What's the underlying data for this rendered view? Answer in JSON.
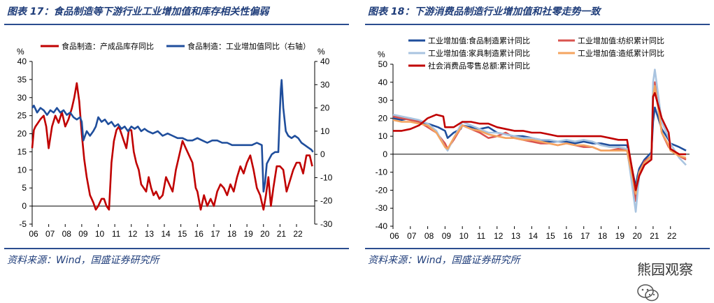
{
  "left": {
    "title": "图表 17：食品制造等下游行业工业增加值和库存相关性偏弱",
    "source": "资料来源：Wind，国盛证券研究所",
    "unit_left": "%",
    "unit_right": "%",
    "legend": [
      "食品制造：产成品库存同比",
      "食品制造：工业增加值同比（右轴）"
    ]
  },
  "right": {
    "title": "图表 18：下游消费品制造行业增加值和社零走势一致",
    "source": "资料来源：Wind，国盛证券研究所",
    "unit_left": "%",
    "legend": [
      "工业增加值:食品制造累计同比",
      "工业增加值:纺织累计同比",
      "工业增加值:家具制造累计同比",
      "工业增加值:造纸累计同比",
      "社会消费品零售总额:累计同比"
    ]
  },
  "watermark": "熊园观察",
  "chart_data": [
    {
      "type": "line",
      "title": "",
      "x_ticks": [
        "06",
        "07",
        "08",
        "09",
        "10",
        "11",
        "12",
        "13",
        "14",
        "15",
        "16",
        "17",
        "18",
        "19",
        "20",
        "21",
        "22"
      ],
      "x_range": [
        2006.0,
        2023.1
      ],
      "y_left": {
        "range": [
          -5,
          40
        ],
        "ticks": [
          -5,
          0,
          5,
          10,
          15,
          20,
          25,
          30,
          35,
          40
        ]
      },
      "y_right": {
        "range": [
          -30,
          40
        ],
        "ticks": [
          -30,
          -20,
          -10,
          0,
          10,
          20,
          30,
          40
        ]
      },
      "colors": {
        "inventory": "#c00000",
        "value_added": "#1f4e9c"
      },
      "series": [
        {
          "name": "食品制造：产成品库存同比",
          "axis": "left",
          "x": [
            2006.0,
            2006.1,
            2006.2,
            2006.35,
            2006.5,
            2006.7,
            2006.85,
            2007.0,
            2007.2,
            2007.4,
            2007.6,
            2007.8,
            2008.0,
            2008.2,
            2008.4,
            2008.55,
            2008.7,
            2008.85,
            2009.0,
            2009.15,
            2009.3,
            2009.5,
            2009.7,
            2009.85,
            2010.0,
            2010.2,
            2010.35,
            2010.5,
            2010.65,
            2010.8,
            2010.95,
            2011.1,
            2011.25,
            2011.4,
            2011.55,
            2011.7,
            2011.85,
            2012.0,
            2012.15,
            2012.3,
            2012.45,
            2012.6,
            2012.75,
            2012.9,
            2013.05,
            2013.2,
            2013.35,
            2013.5,
            2013.7,
            2013.9,
            2014.1,
            2014.3,
            2014.5,
            2014.7,
            2014.9,
            2015.1,
            2015.3,
            2015.5,
            2015.7,
            2015.9,
            2016.0,
            2016.2,
            2016.4,
            2016.6,
            2016.8,
            2017.0,
            2017.2,
            2017.4,
            2017.6,
            2017.8,
            2018.0,
            2018.2,
            2018.4,
            2018.6,
            2018.8,
            2019.0,
            2019.2,
            2019.4,
            2019.6,
            2019.8,
            2020.0,
            2020.15,
            2020.3,
            2020.45,
            2020.6,
            2020.8,
            2021.0,
            2021.2,
            2021.4,
            2021.6,
            2021.8,
            2022.0,
            2022.2,
            2022.4,
            2022.6,
            2022.8,
            2022.95
          ],
          "values": [
            16,
            21,
            22,
            23,
            24,
            25,
            22,
            16,
            22,
            25,
            23,
            26,
            22,
            24,
            27,
            30,
            34,
            29,
            20,
            13,
            8,
            3,
            1,
            -1,
            0,
            2,
            2,
            0,
            -1,
            12,
            18,
            21,
            22,
            20,
            18,
            16,
            21,
            21,
            15,
            12,
            10,
            6,
            5,
            4,
            8,
            5,
            3,
            4,
            2,
            3,
            8,
            6,
            4,
            10,
            14,
            18,
            16,
            14,
            12,
            5,
            4,
            -1,
            3,
            0,
            2,
            0,
            4,
            6,
            5,
            3,
            6,
            4,
            8,
            11,
            9,
            12,
            14,
            10,
            5,
            3,
            -1,
            3,
            8,
            0,
            5,
            11,
            11,
            10,
            4,
            7,
            10,
            12,
            12,
            9,
            14,
            14,
            11
          ]
        },
        {
          "name": "食品制造：工业增加值同比（右轴）",
          "axis": "right",
          "x": [
            2006.0,
            2006.1,
            2006.3,
            2006.5,
            2006.7,
            2006.9,
            2007.1,
            2007.3,
            2007.5,
            2007.7,
            2007.9,
            2008.1,
            2008.3,
            2008.5,
            2008.7,
            2008.9,
            2009.0,
            2009.1,
            2009.3,
            2009.5,
            2009.7,
            2009.85,
            2010.0,
            2010.2,
            2010.4,
            2010.6,
            2010.8,
            2011.0,
            2011.2,
            2011.4,
            2011.6,
            2011.8,
            2012.0,
            2012.2,
            2012.4,
            2012.6,
            2012.8,
            2013.0,
            2013.3,
            2013.6,
            2013.9,
            2014.2,
            2014.5,
            2014.8,
            2015.1,
            2015.4,
            2015.7,
            2016.0,
            2016.3,
            2016.6,
            2016.9,
            2017.2,
            2017.5,
            2017.8,
            2018.1,
            2018.4,
            2018.7,
            2019.0,
            2019.3,
            2019.6,
            2019.9,
            2020.0,
            2020.1,
            2020.2,
            2020.35,
            2020.5,
            2020.7,
            2020.9,
            2021.0,
            2021.05,
            2021.1,
            2021.2,
            2021.35,
            2021.5,
            2021.7,
            2021.9,
            2022.1,
            2022.3,
            2022.5,
            2022.7,
            2022.9,
            2023.0
          ],
          "values": [
            20,
            21,
            18,
            20,
            19,
            17,
            19,
            18,
            20,
            18,
            19,
            17,
            18,
            16,
            15,
            16,
            14,
            6,
            10,
            8,
            10,
            12,
            16,
            14,
            15,
            13,
            14,
            12,
            13,
            11,
            12,
            10,
            12,
            11,
            12,
            10,
            11,
            10,
            9,
            10,
            8,
            9,
            8,
            7,
            7,
            6,
            6,
            7,
            6,
            5,
            6,
            6,
            5,
            5,
            4,
            4,
            4,
            4,
            4,
            5,
            4,
            -16,
            -12,
            -4,
            -2,
            0,
            1,
            1,
            20,
            28,
            32,
            20,
            10,
            8,
            7,
            8,
            7,
            5,
            4,
            3,
            2,
            1
          ]
        }
      ]
    },
    {
      "type": "line",
      "title": "",
      "x_ticks": [
        "06",
        "07",
        "08",
        "09",
        "10",
        "11",
        "12",
        "13",
        "14",
        "15",
        "16",
        "17",
        "18",
        "19",
        "20",
        "21",
        "22"
      ],
      "x_range": [
        2006.0,
        2023.1
      ],
      "y_left": {
        "range": [
          -40,
          50
        ],
        "ticks": [
          -40,
          -30,
          -20,
          -10,
          0,
          10,
          20,
          30,
          40,
          50
        ]
      },
      "colors": {
        "food": "#1f4e9c",
        "textile": "#d9534f",
        "furniture": "#a9c4e0",
        "paper": "#f4a460",
        "retail": "#c00000"
      },
      "series": [
        {
          "name": "工业增加值:食品制造累计同比",
          "color_key": "food",
          "x": [
            2006.0,
            2006.5,
            2007.0,
            2007.5,
            2008.0,
            2008.3,
            2008.6,
            2009.0,
            2009.15,
            2009.5,
            2009.9,
            2010.0,
            2010.5,
            2011.0,
            2011.5,
            2012.0,
            2012.5,
            2013.0,
            2013.5,
            2014.0,
            2014.5,
            2015.0,
            2015.5,
            2016.0,
            2016.5,
            2017.0,
            2017.5,
            2018.0,
            2018.5,
            2019.0,
            2019.5,
            2020.0,
            2020.1,
            2020.2,
            2020.5,
            2020.9,
            2021.0,
            2021.1,
            2021.5,
            2021.9,
            2022.0,
            2022.5,
            2022.9
          ],
          "values": [
            20,
            19,
            20,
            18,
            17,
            16,
            15,
            13,
            9,
            12,
            14,
            16,
            15,
            14,
            15,
            12,
            11,
            10,
            10,
            9,
            8,
            7,
            7,
            7,
            6,
            7,
            6,
            6,
            5,
            5,
            5,
            -18,
            -12,
            -8,
            -3,
            1,
            18,
            26,
            14,
            8,
            6,
            4,
            2
          ]
        },
        {
          "name": "工业增加值:纺织累计同比",
          "color_key": "textile",
          "x": [
            2006.0,
            2006.5,
            2007.0,
            2007.5,
            2008.0,
            2008.5,
            2009.0,
            2009.15,
            2009.5,
            2010.0,
            2010.5,
            2011.0,
            2011.5,
            2012.0,
            2012.5,
            2013.0,
            2013.5,
            2014.0,
            2014.5,
            2015.0,
            2015.5,
            2016.0,
            2016.5,
            2017.0,
            2017.5,
            2018.0,
            2018.5,
            2019.0,
            2019.5,
            2020.0,
            2020.1,
            2020.2,
            2020.5,
            2020.9,
            2021.0,
            2021.1,
            2021.5,
            2021.9,
            2022.0,
            2022.5,
            2022.9
          ],
          "values": [
            21,
            20,
            19,
            18,
            15,
            12,
            6,
            3,
            8,
            16,
            14,
            12,
            9,
            10,
            12,
            9,
            8,
            7,
            6,
            6,
            5,
            6,
            5,
            4,
            4,
            2,
            2,
            3,
            2,
            -26,
            -18,
            -10,
            -4,
            -1,
            36,
            40,
            12,
            4,
            3,
            -1,
            -3
          ]
        },
        {
          "name": "工业增加值:家具制造累计同比",
          "color_key": "furniture",
          "x": [
            2006.0,
            2006.5,
            2007.0,
            2007.5,
            2008.0,
            2008.5,
            2009.0,
            2009.15,
            2009.5,
            2010.0,
            2010.5,
            2011.0,
            2011.5,
            2012.0,
            2012.5,
            2013.0,
            2013.5,
            2014.0,
            2014.5,
            2015.0,
            2015.5,
            2016.0,
            2016.5,
            2017.0,
            2017.5,
            2018.0,
            2018.5,
            2019.0,
            2019.5,
            2020.0,
            2020.1,
            2020.2,
            2020.5,
            2020.9,
            2021.0,
            2021.1,
            2021.5,
            2021.9,
            2022.0,
            2022.5,
            2022.9
          ],
          "values": [
            22,
            21,
            20,
            19,
            17,
            13,
            4,
            2,
            9,
            18,
            16,
            14,
            12,
            12,
            11,
            10,
            9,
            9,
            8,
            8,
            7,
            8,
            7,
            8,
            7,
            5,
            4,
            4,
            3,
            -32,
            -22,
            -12,
            -6,
            -2,
            40,
            47,
            18,
            9,
            6,
            -2,
            -6
          ]
        },
        {
          "name": "工业增加值:造纸累计同比",
          "color_key": "paper",
          "x": [
            2006.0,
            2006.5,
            2007.0,
            2007.5,
            2008.0,
            2008.5,
            2009.0,
            2009.15,
            2009.5,
            2010.0,
            2010.5,
            2011.0,
            2011.5,
            2012.0,
            2012.5,
            2013.0,
            2013.5,
            2014.0,
            2014.5,
            2015.0,
            2015.5,
            2016.0,
            2016.5,
            2017.0,
            2017.5,
            2018.0,
            2018.5,
            2019.0,
            2019.5,
            2020.0,
            2020.1,
            2020.2,
            2020.5,
            2020.9,
            2021.0,
            2021.1,
            2021.5,
            2021.9,
            2022.0,
            2022.5,
            2022.9
          ],
          "values": [
            19,
            18,
            18,
            17,
            16,
            12,
            4,
            3,
            9,
            16,
            14,
            13,
            11,
            10,
            9,
            9,
            8,
            8,
            7,
            6,
            5,
            6,
            5,
            5,
            4,
            2,
            2,
            2,
            2,
            -22,
            -15,
            -10,
            -5,
            -1,
            32,
            38,
            12,
            5,
            2,
            -1,
            -2
          ]
        },
        {
          "name": "社会消费品零售总额:累计同比",
          "color_key": "retail",
          "x": [
            2006.0,
            2006.5,
            2007.0,
            2007.5,
            2008.0,
            2008.5,
            2008.9,
            2009.0,
            2009.5,
            2010.0,
            2010.5,
            2011.0,
            2011.5,
            2012.0,
            2012.5,
            2013.0,
            2013.5,
            2014.0,
            2014.5,
            2015.0,
            2015.5,
            2016.0,
            2016.5,
            2017.0,
            2017.5,
            2018.0,
            2018.5,
            2019.0,
            2019.5,
            2020.0,
            2020.1,
            2020.2,
            2020.5,
            2020.9,
            2021.0,
            2021.1,
            2021.5,
            2021.9,
            2022.0,
            2022.5,
            2022.9
          ],
          "values": [
            13,
            13,
            14,
            16,
            20,
            22,
            21,
            15,
            15,
            18,
            18,
            17,
            17,
            15,
            14,
            13,
            13,
            12,
            12,
            11,
            10,
            10,
            10,
            10,
            10,
            10,
            9,
            8,
            8,
            -20,
            -16,
            -12,
            -6,
            -3,
            32,
            34,
            20,
            12,
            3,
            0,
            0
          ]
        }
      ]
    }
  ]
}
